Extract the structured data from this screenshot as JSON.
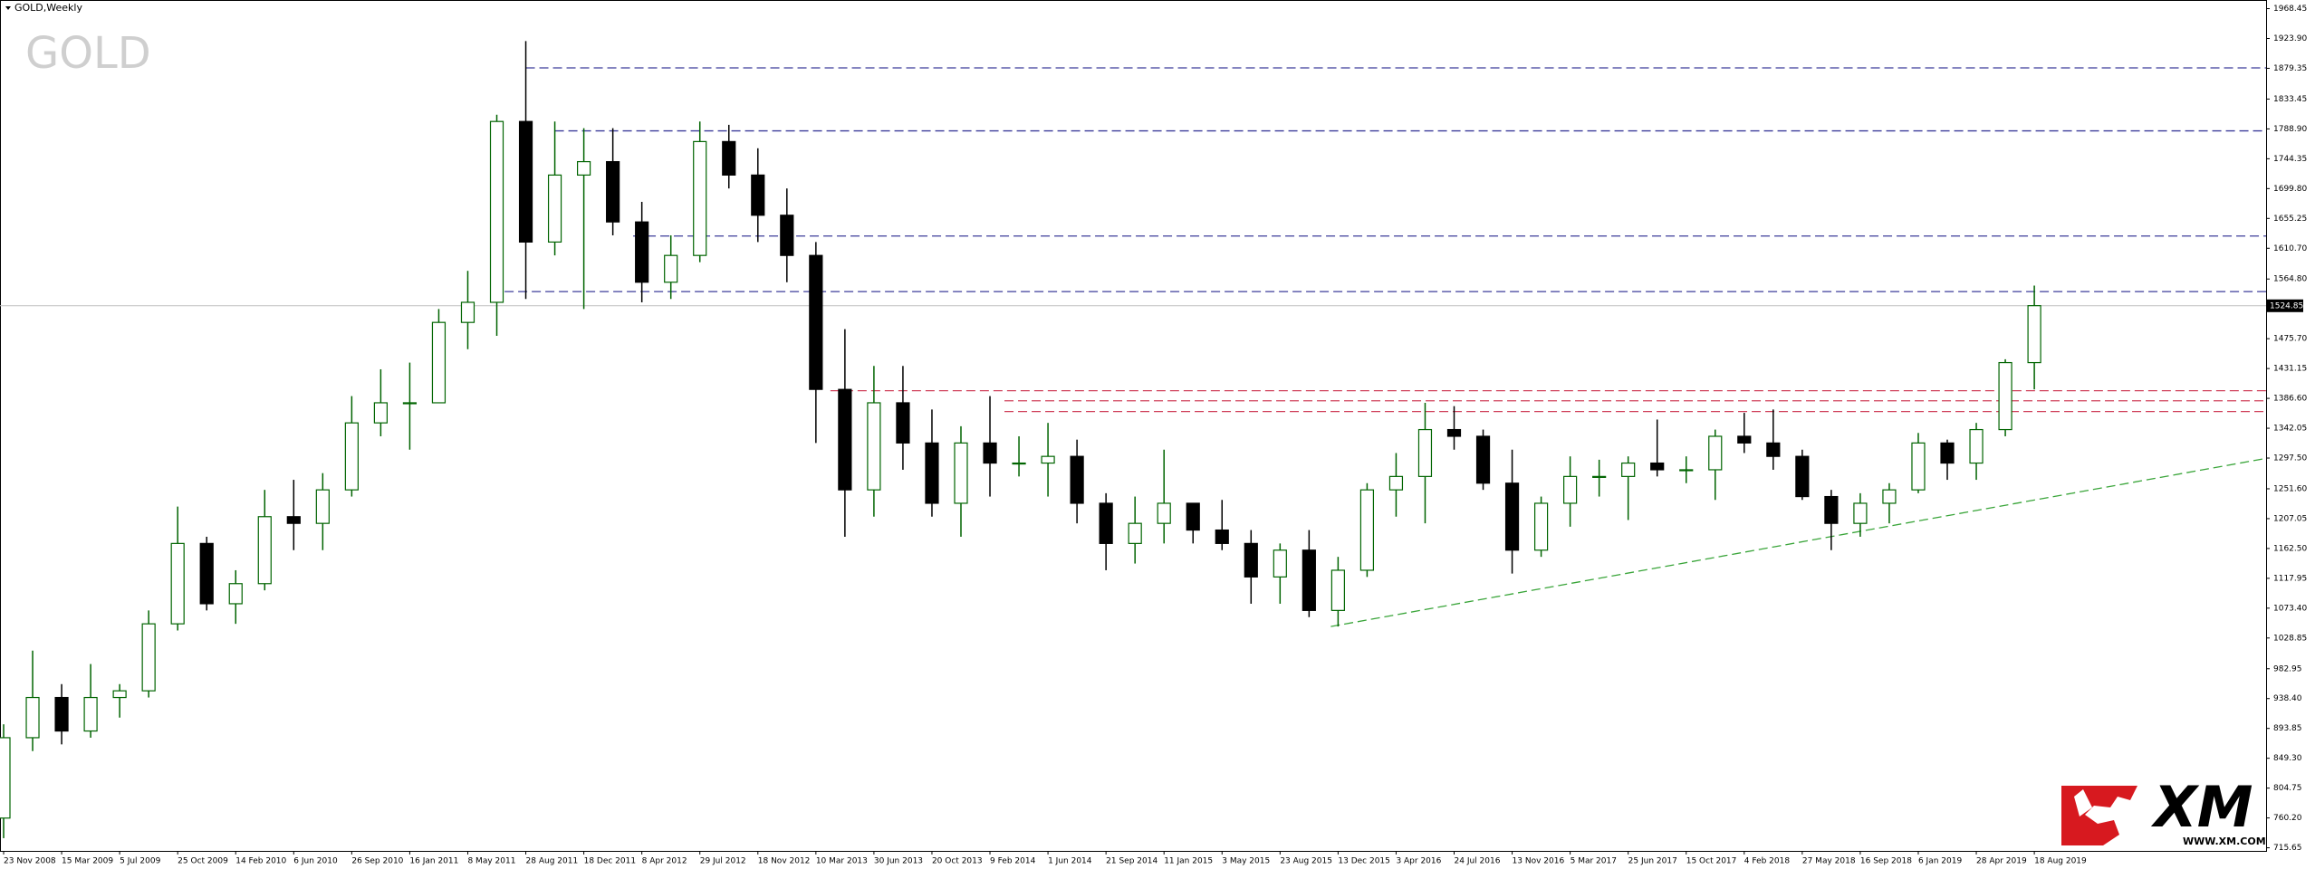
{
  "chart_data": {
    "type": "candlestick",
    "title": "GOLD,Weekly",
    "watermark": "GOLD",
    "brand": {
      "logo": "XM",
      "url": "WWW.XM.COM"
    },
    "categories": [
      "23 Nov 2008",
      null,
      "15 Mar 2009",
      null,
      "5 Jul 2009",
      null,
      "25 Oct 2009",
      null,
      "14 Feb 2010",
      null,
      "6 Jun 2010",
      null,
      "26 Sep 2010",
      null,
      "16 Jan 2011",
      null,
      "8 May 2011",
      null,
      "28 Aug 2011",
      null,
      "18 Dec 2011",
      null,
      "8 Apr 2012",
      null,
      "29 Jul 2012",
      null,
      "18 Nov 2012",
      null,
      "10 Mar 2013",
      null,
      "30 Jun 2013",
      null,
      "20 Oct 2013",
      null,
      "9 Feb 2014",
      null,
      "1 Jun 2014",
      null,
      "21 Sep 2014",
      null,
      "11 Jan 2015",
      null,
      "3 May 2015",
      null,
      "23 Aug 2015",
      null,
      "13 Dec 2015",
      null,
      "3 Apr 2016",
      null,
      "24 Jul 2016",
      null,
      "13 Nov 2016",
      null,
      "5 Mar 2017",
      null,
      "25 Jun 2017",
      null,
      "15 Oct 2017",
      null,
      "4 Feb 2018",
      null,
      "27 May 2018",
      null,
      "16 Sep 2018",
      null,
      "6 Jan 2019",
      null,
      "28 Apr 2019",
      null,
      "18 Aug 2019"
    ],
    "open": [
      760,
      880,
      940,
      890,
      940,
      950,
      1050,
      1170,
      1080,
      1110,
      1210,
      1200,
      1250,
      1350,
      1380,
      1380,
      1500,
      1530,
      1800,
      1620,
      1720,
      1740,
      1650,
      1560,
      1600,
      1770,
      1720,
      1660,
      1600,
      1400,
      1250,
      1380,
      1320,
      1230,
      1320,
      1290,
      1290,
      1300,
      1230,
      1170,
      1200,
      1230,
      1190,
      1170,
      1120,
      1160,
      1070,
      1130,
      1250,
      1270,
      1340,
      1330,
      1260,
      1160,
      1230,
      1270,
      1270,
      1290,
      1280,
      1280,
      1330,
      1320,
      1300,
      1240,
      1200,
      1230,
      1250,
      1320,
      1290,
      1340,
      1440
    ],
    "high": [
      900,
      1010,
      960,
      990,
      960,
      1070,
      1225,
      1180,
      1130,
      1250,
      1265,
      1275,
      1390,
      1430,
      1440,
      1520,
      1577,
      1810,
      1920,
      1800,
      1790,
      1790,
      1680,
      1630,
      1800,
      1795,
      1760,
      1700,
      1620,
      1490,
      1435,
      1435,
      1370,
      1345,
      1390,
      1330,
      1350,
      1325,
      1245,
      1240,
      1310,
      1225,
      1235,
      1190,
      1170,
      1190,
      1150,
      1260,
      1305,
      1380,
      1375,
      1340,
      1310,
      1240,
      1300,
      1295,
      1300,
      1355,
      1300,
      1340,
      1365,
      1370,
      1310,
      1250,
      1245,
      1260,
      1335,
      1325,
      1350,
      1445,
      1555
    ],
    "low": [
      730,
      860,
      870,
      880,
      910,
      940,
      1040,
      1070,
      1050,
      1100,
      1160,
      1160,
      1240,
      1330,
      1310,
      1380,
      1460,
      1480,
      1535,
      1600,
      1520,
      1630,
      1530,
      1535,
      1590,
      1700,
      1620,
      1560,
      1320,
      1180,
      1210,
      1280,
      1210,
      1180,
      1240,
      1270,
      1240,
      1200,
      1130,
      1140,
      1170,
      1170,
      1160,
      1080,
      1080,
      1060,
      1046,
      1120,
      1210,
      1200,
      1310,
      1250,
      1125,
      1150,
      1195,
      1240,
      1205,
      1270,
      1260,
      1235,
      1305,
      1280,
      1235,
      1160,
      1180,
      1200,
      1245,
      1265,
      1265,
      1330,
      1400
    ],
    "close": [
      880,
      940,
      890,
      940,
      950,
      1050,
      1170,
      1080,
      1110,
      1210,
      1200,
      1250,
      1350,
      1380,
      1380,
      1500,
      1530,
      1800,
      1620,
      1720,
      1740,
      1650,
      1560,
      1600,
      1770,
      1720,
      1660,
      1600,
      1400,
      1250,
      1380,
      1320,
      1230,
      1320,
      1290,
      1290,
      1300,
      1230,
      1170,
      1200,
      1230,
      1190,
      1170,
      1120,
      1160,
      1070,
      1130,
      1250,
      1270,
      1340,
      1330,
      1260,
      1160,
      1230,
      1270,
      1270,
      1290,
      1280,
      1280,
      1330,
      1320,
      1300,
      1240,
      1200,
      1230,
      1250,
      1320,
      1290,
      1340,
      1440,
      1525
    ],
    "up_color": "#006400",
    "down_color": "#000000",
    "ylim": [
      711,
      1980
    ],
    "yticks": [
      1968.45,
      {
        "value": 1923.9,
        "label": "1923.90"
      },
      1879.35,
      1833.45,
      {
        "value": 1788.9,
        "label": "1788.90"
      },
      1744.35,
      {
        "value": 1699.8,
        "label": "1699.80"
      },
      1655.25,
      {
        "value": 1610.7,
        "label": "1610.70"
      },
      {
        "value": 1564.8,
        "label": "1564.80"
      },
      {
        "value": 1475.7,
        "label": "1475.70"
      },
      1431.15,
      {
        "value": 1386.6,
        "label": "1386.60"
      },
      1342.05,
      {
        "value": 1297.5,
        "label": "1297.50"
      },
      {
        "value": 1251.6,
        "label": "1251.60"
      },
      1207.05,
      {
        "value": 1162.5,
        "label": "1162.50"
      },
      1117.95,
      {
        "value": 1073.4,
        "label": "1073.40"
      },
      1028.85,
      982.95,
      {
        "value": 938.4,
        "label": "938.40"
      },
      893.85,
      {
        "value": 849.3,
        "label": "849.30"
      },
      804.75,
      {
        "value": 760.2,
        "label": "760.20"
      },
      715.65
    ],
    "current_price": 1524.85,
    "levels": [
      {
        "value": 1880,
        "color": "#3c3c9a",
        "from": 18
      },
      {
        "value": 1786,
        "color": "#3c3c9a",
        "from": 19
      },
      {
        "value": 1629,
        "color": "#3c3c9a",
        "from": 21.7
      },
      {
        "value": 1546,
        "color": "#3c3c9a",
        "from": 16.8
      },
      {
        "value": 1398,
        "color": "#d0405a",
        "from": 28.5
      },
      {
        "value": 1383,
        "color": "#d0405a",
        "from": 34.5
      },
      {
        "value": 1367,
        "color": "#d0405a",
        "from": 34.5
      }
    ],
    "trendline": {
      "x": [
        45.75,
        78
      ],
      "y": [
        1046,
        1297
      ],
      "color": "#3aa53a"
    }
  }
}
